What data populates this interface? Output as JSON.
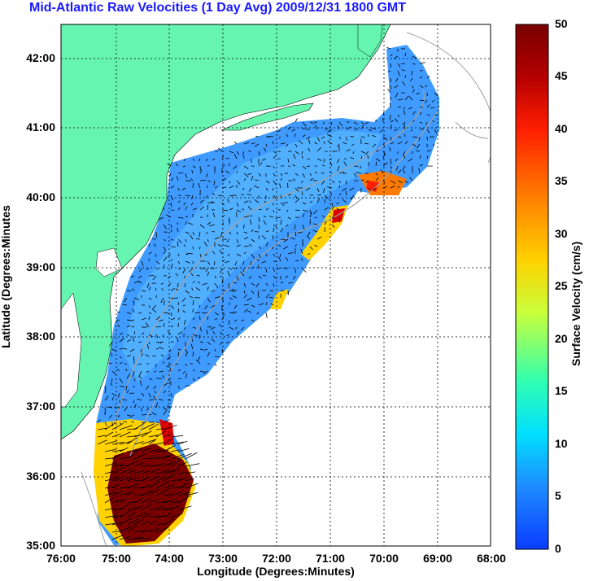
{
  "title": "Mid-Atlantic Raw Velocities (1 Day Avg) 2009/12/31 1800 GMT",
  "axes": {
    "xlabel": "Longitude (Degrees:Minutes)",
    "ylabel": "Latitude (Degrees:Minutes",
    "x_ticks": [
      "76:00",
      "75:00",
      "74:00",
      "73:00",
      "72:00",
      "71:00",
      "70:00",
      "69:00",
      "68:00"
    ],
    "y_ticks": [
      "42:00",
      "41:00",
      "40:00",
      "39:00",
      "38:00",
      "37:00",
      "36:00",
      "35:00"
    ],
    "grid": true
  },
  "colorbar": {
    "label": "Surface Velocity (cm/s)",
    "ticks": [
      "50",
      "45",
      "40",
      "35",
      "30",
      "25",
      "20",
      "15",
      "10",
      "5",
      "0"
    ],
    "range": [
      0,
      50
    ],
    "colors": [
      "#0a3cff",
      "#1e8cff",
      "#00e0ff",
      "#30ffb0",
      "#c8ff3c",
      "#ffd200",
      "#ff7800",
      "#ff1e00",
      "#b40000",
      "#780000"
    ]
  },
  "colors": {
    "land": "#66f5b0",
    "ocean_low": "#4aa8ff",
    "ocean_high": "#8b0000",
    "title": "#1a1aff"
  }
}
